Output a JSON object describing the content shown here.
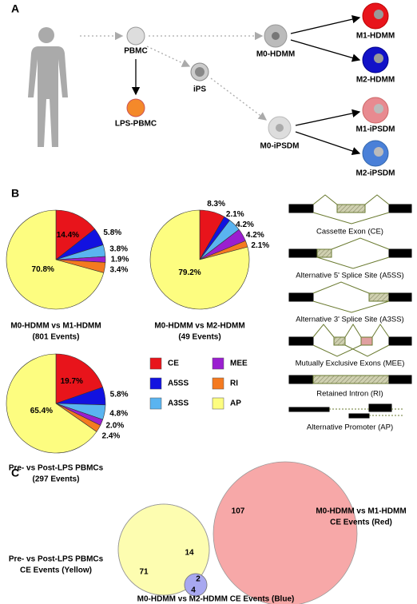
{
  "panel_a": {
    "label": "A",
    "nodes": [
      "PBMC",
      "LPS-PBMC",
      "iPS",
      "M0-HDMM",
      "M0-iPSDM",
      "M1-HDMM",
      "M2-HDMM",
      "M1-iPSDM",
      "M2-iPSDM"
    ]
  },
  "panel_b": {
    "label": "B"
  },
  "chart_data": [
    {
      "type": "pie",
      "title": "M0-HDMM vs M1-HDMM",
      "subtitle": "(801 Events)",
      "values": [
        14.4,
        5.8,
        3.8,
        1.9,
        3.4,
        70.8
      ],
      "value_labels": [
        "14.4%",
        "5.8%",
        "3.8%",
        "1.9%",
        "3.4%",
        "70.8%"
      ],
      "colors": [
        "#e8141b",
        "#1212e0",
        "#5ab4f0",
        "#9a1fd0",
        "#f47a20",
        "#fdfd80"
      ]
    },
    {
      "type": "pie",
      "title": "M0-HDMM vs M2-HDMM",
      "subtitle": "(49 Events)",
      "values": [
        8.3,
        2.1,
        4.2,
        4.2,
        2.1,
        79.2
      ],
      "value_labels": [
        "8.3%",
        "2.1%",
        "4.2%",
        "4.2%",
        "2.1%",
        "79.2%"
      ],
      "colors": [
        "#e8141b",
        "#1212e0",
        "#5ab4f0",
        "#9a1fd0",
        "#f47a20",
        "#fdfd80"
      ]
    },
    {
      "type": "pie",
      "title": "Pre- vs Post-LPS PBMCs",
      "subtitle": "(297 Events)",
      "values": [
        19.7,
        5.8,
        4.8,
        2.0,
        2.4,
        65.4
      ],
      "value_labels": [
        "19.7%",
        "5.8%",
        "4.8%",
        "2.0%",
        "2.4%",
        "65.4%"
      ],
      "colors": [
        "#e8141b",
        "#1212e0",
        "#5ab4f0",
        "#9a1fd0",
        "#f47a20",
        "#fdfd80"
      ]
    }
  ],
  "legend": {
    "names": [
      "CE",
      "A5SS",
      "A3SS",
      "MEE",
      "RI",
      "AP"
    ],
    "colors": [
      "#e8141b",
      "#1212e0",
      "#5ab4f0",
      "#9a1fd0",
      "#f47a20",
      "#fdfd80"
    ]
  },
  "splice_types": [
    "Cassette Exon (CE)",
    "Alternative 5' Splice Site (A5SS)",
    "Alternative 3' Splice Site (A3SS)",
    "Mutually Exclusive Exons (MEE)",
    "Retained Intron (RI)",
    "Alternative Promoter (AP)"
  ],
  "panel_c": {
    "label": "C",
    "red_label": [
      "M0-HDMM vs M1-HDMM",
      "CE Events (Red)"
    ],
    "yellow_label": [
      "Pre- vs Post-LPS PBMCs",
      "CE Events (Yellow)"
    ],
    "blue_label": "M0-HDMM vs M2-HDMM CE Events (Blue)",
    "counts": [
      107,
      14,
      71,
      2,
      4
    ]
  }
}
